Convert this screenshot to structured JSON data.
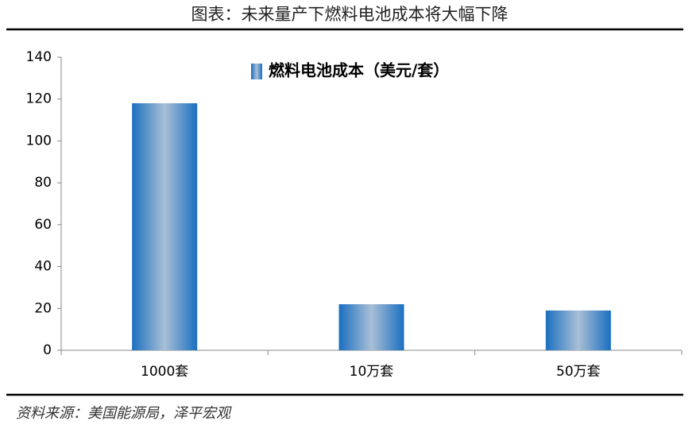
{
  "header": {
    "title": "图表：未来量产下燃料电池成本将大幅下降"
  },
  "chart_data": {
    "type": "bar",
    "categories": [
      "1000套",
      "10万套",
      "50万套"
    ],
    "series": [
      {
        "name": "燃料电池成本（美元/套）",
        "color": "#1a6fc0",
        "values": [
          118,
          22,
          19
        ]
      }
    ],
    "ylim": [
      0,
      140
    ],
    "yticks": [
      0,
      20,
      40,
      60,
      80,
      100,
      120,
      140
    ]
  },
  "footer": {
    "source": "资料来源：美国能源局，泽平宏观"
  }
}
